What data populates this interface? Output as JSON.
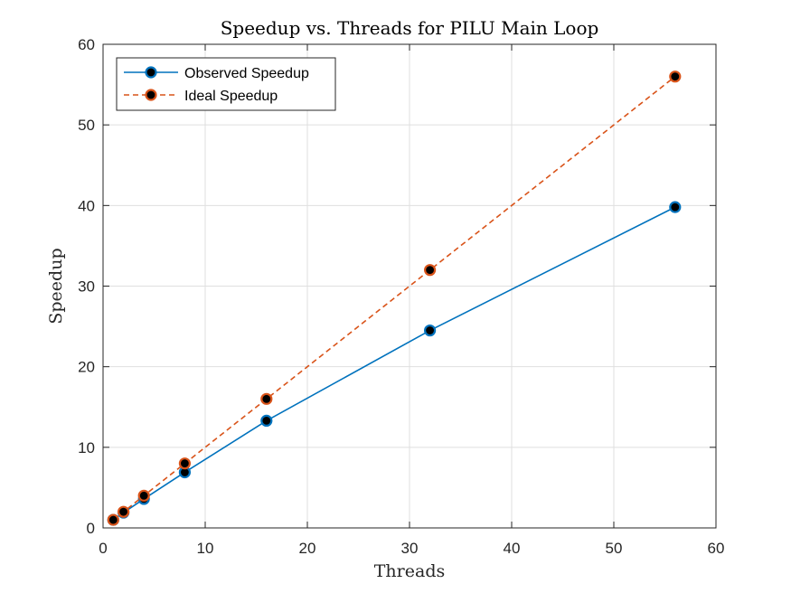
{
  "chart_data": {
    "type": "line",
    "title": "Speedup vs. Threads for PILU Main Loop",
    "xlabel": "Threads",
    "ylabel": "Speedup",
    "xlim": [
      0,
      60
    ],
    "ylim": [
      0,
      60
    ],
    "xticks": [
      0,
      10,
      20,
      30,
      40,
      50,
      60
    ],
    "yticks": [
      0,
      10,
      20,
      30,
      40,
      50,
      60
    ],
    "grid": true,
    "legend_position": "top-left",
    "series": [
      {
        "name": "Observed Speedup",
        "x": [
          1,
          2,
          4,
          8,
          16,
          32,
          56
        ],
        "y": [
          1,
          1.9,
          3.6,
          6.9,
          13.3,
          24.5,
          39.8
        ],
        "color": "#0072BD",
        "line_style": "solid",
        "marker_edge": "#0072BD",
        "marker_fill": "#000000"
      },
      {
        "name": "Ideal Speedup",
        "x": [
          1,
          2,
          4,
          8,
          16,
          32,
          56
        ],
        "y": [
          1,
          2,
          4,
          8,
          16,
          32,
          56
        ],
        "color": "#D95319",
        "line_style": "dashed",
        "marker_edge": "#D95319",
        "marker_fill": "#000000"
      }
    ]
  }
}
